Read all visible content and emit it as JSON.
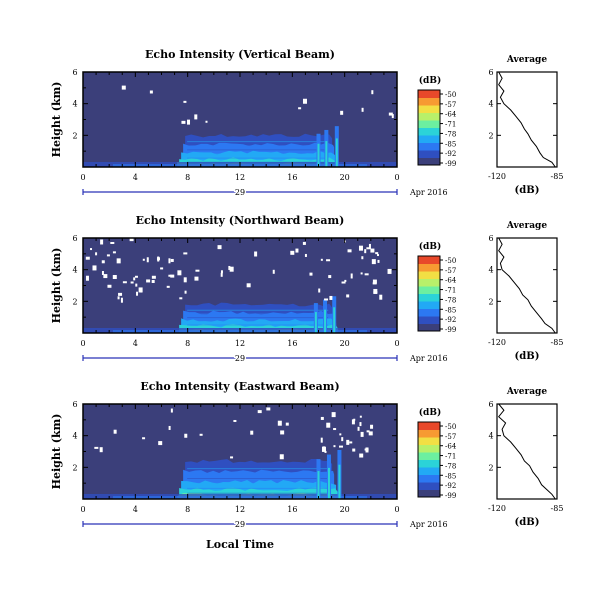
{
  "colors": {
    "background": "#3b3f7a",
    "bar_colors": [
      "#3b3f7a",
      "#2f4fc0",
      "#2c78f2",
      "#22a9f5",
      "#2bd3d8",
      "#6cefa0",
      "#b8f06a",
      "#f2df44",
      "#f79a32",
      "#e8482a"
    ],
    "marker": "#ffffff"
  },
  "panels": [
    {
      "title": "Echo Intensity (Vertical Beam)",
      "ylabel": "Height (km)",
      "yticks": [
        "6",
        "4",
        "2"
      ],
      "xticks": [
        "0",
        "4",
        "8",
        "12",
        "16",
        "20",
        "0"
      ],
      "date_day": "29",
      "date_label": "Apr 2016",
      "colorbar": {
        "unit": "(dB)",
        "labels": [
          "-50",
          "-57",
          "-64",
          "-71",
          "-78",
          "-85",
          "-92",
          "-99"
        ]
      },
      "average": {
        "title": "Average",
        "xlabel": "(dB)",
        "xticks": [
          "-120",
          "-85"
        ],
        "yticks": [
          "6",
          "4",
          "2"
        ]
      }
    },
    {
      "title": "Echo Intensity (Northward Beam)",
      "ylabel": "Height (km)",
      "yticks": [
        "6",
        "4",
        "2"
      ],
      "xticks": [
        "0",
        "4",
        "8",
        "12",
        "16",
        "20",
        "0"
      ],
      "date_day": "29",
      "date_label": "Apr 2016",
      "colorbar": {
        "unit": "(dB)",
        "labels": [
          "-50",
          "-57",
          "-64",
          "-71",
          "-78",
          "-85",
          "-92",
          "-99"
        ]
      },
      "average": {
        "title": "Average",
        "xlabel": "(dB)",
        "xticks": [
          "-120",
          "-85"
        ],
        "yticks": [
          "6",
          "4",
          "2"
        ]
      }
    },
    {
      "title": "Echo Intensity (Eastward Beam)",
      "ylabel": "Height (km)",
      "yticks": [
        "6",
        "4",
        "2"
      ],
      "xticks": [
        "0",
        "4",
        "8",
        "12",
        "16",
        "20",
        "0"
      ],
      "date_day": "29",
      "date_label": "Apr 2016",
      "colorbar": {
        "unit": "(dB)",
        "labels": [
          "-50",
          "-57",
          "-64",
          "-71",
          "-78",
          "-85",
          "-92",
          "-99"
        ]
      },
      "average": {
        "title": "Average",
        "xlabel": "(dB)",
        "xticks": [
          "-120",
          "-85"
        ],
        "yticks": [
          "6",
          "4",
          "2"
        ]
      }
    }
  ],
  "xlabel": "Local Time",
  "chart_data": [
    {
      "type": "heatmap",
      "title": "Echo Intensity (Vertical Beam)",
      "xlabel": "Local Time",
      "ylabel": "Height (km)",
      "xlim": [
        0,
        24
      ],
      "ylim": [
        0,
        6
      ],
      "colorbar_range_db": [
        -99,
        -50
      ],
      "enhanced_echo": {
        "time_range_h": [
          7.5,
          19.5
        ],
        "height_top_km": 2.0,
        "convective_times_h": [
          18.0,
          18.6,
          19.4
        ]
      }
    },
    {
      "type": "heatmap",
      "title": "Echo Intensity (Northward Beam)",
      "xlabel": "Local Time",
      "ylabel": "Height (km)",
      "xlim": [
        0,
        24
      ],
      "ylim": [
        0,
        6
      ],
      "colorbar_range_db": [
        -99,
        -50
      ],
      "enhanced_echo": {
        "time_range_h": [
          7.5,
          19.5
        ],
        "height_top_km": 1.8,
        "convective_times_h": [
          17.8,
          18.5,
          19.2
        ]
      }
    },
    {
      "type": "heatmap",
      "title": "Echo Intensity (Eastward Beam)",
      "xlabel": "Local Time",
      "ylabel": "Height (km)",
      "xlim": [
        0,
        24
      ],
      "ylim": [
        0,
        6
      ],
      "colorbar_range_db": [
        -99,
        -50
      ],
      "enhanced_echo": {
        "time_range_h": [
          7.5,
          19.5
        ],
        "height_top_km": 2.4,
        "convective_times_h": [
          18.0,
          18.8,
          19.6
        ]
      }
    },
    {
      "type": "line",
      "title": "Average",
      "xlabel": "(dB)",
      "xlim": [
        -120,
        -85
      ],
      "ylim": [
        0,
        6
      ],
      "profiles": [
        {
          "x": [
            -86,
            -88,
            -93,
            -95,
            -97,
            -100,
            -102,
            -104,
            -106,
            -109,
            -112,
            -116,
            -118,
            -116,
            -119,
            -117,
            -119
          ],
          "y": [
            0.0,
            0.3,
            0.6,
            0.9,
            1.3,
            1.7,
            2.1,
            2.4,
            2.8,
            3.2,
            3.6,
            4.0,
            4.4,
            4.8,
            5.2,
            5.6,
            6.0
          ]
        },
        {
          "x": [
            -86,
            -88,
            -92,
            -94,
            -97,
            -100,
            -102,
            -105,
            -107,
            -110,
            -113,
            -117,
            -118,
            -116,
            -119,
            -117,
            -119
          ],
          "y": [
            0.0,
            0.3,
            0.6,
            0.9,
            1.3,
            1.7,
            2.1,
            2.4,
            2.8,
            3.2,
            3.6,
            4.0,
            4.4,
            4.8,
            5.2,
            5.6,
            6.0
          ]
        },
        {
          "x": [
            -86,
            -88,
            -91,
            -94,
            -96,
            -99,
            -101,
            -104,
            -106,
            -109,
            -112,
            -116,
            -117,
            -115,
            -119,
            -116,
            -119
          ],
          "y": [
            0.0,
            0.3,
            0.6,
            0.9,
            1.3,
            1.7,
            2.1,
            2.4,
            2.8,
            3.2,
            3.6,
            4.0,
            4.4,
            4.8,
            5.2,
            5.6,
            6.0
          ]
        }
      ]
    }
  ]
}
